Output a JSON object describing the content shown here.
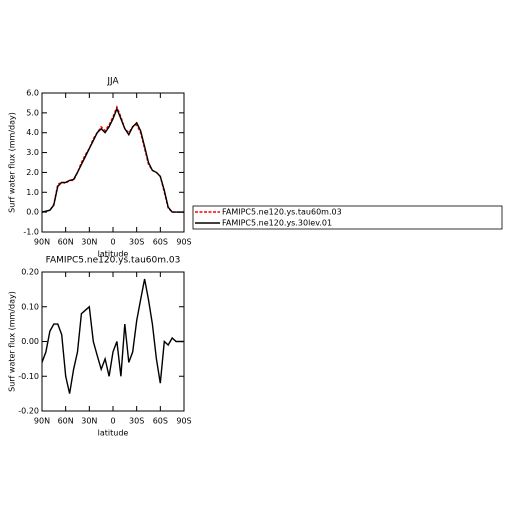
{
  "chart_data": [
    {
      "type": "line",
      "title": "JJA",
      "x_label": "latitude",
      "y_label": "Surf water flux (mm/day)",
      "x": [
        90,
        85,
        80,
        75,
        70,
        65,
        60,
        55,
        50,
        45,
        40,
        35,
        30,
        25,
        20,
        15,
        10,
        5,
        0,
        -5,
        -10,
        -15,
        -20,
        -25,
        -30,
        -35,
        -40,
        -45,
        -50,
        -55,
        -60,
        -65,
        -70,
        -75,
        -80,
        -85,
        -90
      ],
      "xlim": [
        90,
        -90
      ],
      "xticks": [
        {
          "value": 90,
          "label": "90N"
        },
        {
          "value": 60,
          "label": "60N"
        },
        {
          "value": 30,
          "label": "30N"
        },
        0,
        {
          "value": -30,
          "label": "30S"
        },
        {
          "value": -60,
          "label": "60S"
        },
        {
          "value": -90,
          "label": "90S"
        }
      ],
      "ylim": [
        -1,
        6
      ],
      "yticks": [
        {
          "value": -1,
          "label": "-1.0"
        },
        {
          "value": 0,
          "label": "0.0"
        },
        {
          "value": 1,
          "label": "1.0"
        },
        {
          "value": 2,
          "label": "2.0"
        },
        {
          "value": 3,
          "label": "3.0"
        },
        {
          "value": 4,
          "label": "4.0"
        },
        {
          "value": 5,
          "label": "5.0"
        },
        {
          "value": 6,
          "label": "6.0"
        }
      ],
      "series": [
        {
          "name": "FAMIPC5.ne120.ys.tau60m.03",
          "color": "#ff0000",
          "dashed": true,
          "values": [
            0.0,
            0.05,
            0.1,
            0.4,
            1.4,
            1.5,
            1.45,
            1.6,
            1.6,
            2.0,
            2.5,
            2.9,
            3.2,
            3.7,
            4.0,
            4.3,
            4.1,
            4.4,
            4.8,
            5.3,
            4.8,
            4.2,
            4.0,
            4.3,
            4.4,
            4.0,
            3.2,
            2.4,
            2.1,
            2.0,
            1.8,
            1.0,
            0.2,
            0.0,
            0.0,
            0.0,
            0.0
          ]
        },
        {
          "name": "FAMIPC5.ne120.ys.30lev.01",
          "color": "#000000",
          "dashed": false,
          "values": [
            0.0,
            0.05,
            0.1,
            0.35,
            1.3,
            1.5,
            1.5,
            1.6,
            1.65,
            2.0,
            2.4,
            2.8,
            3.2,
            3.6,
            4.0,
            4.2,
            4.0,
            4.3,
            4.7,
            5.2,
            4.7,
            4.2,
            3.9,
            4.3,
            4.5,
            4.1,
            3.3,
            2.5,
            2.1,
            2.0,
            1.8,
            1.1,
            0.25,
            0.0,
            0.0,
            0.0,
            0.0
          ]
        }
      ]
    },
    {
      "type": "line",
      "title": "FAMIPC5.ne120.ys.tau60m.03",
      "x_label": "latitude",
      "y_label": "Surf water flux (mm/day)",
      "x": [
        90,
        85,
        80,
        75,
        70,
        65,
        60,
        55,
        50,
        45,
        40,
        35,
        30,
        25,
        20,
        15,
        10,
        5,
        0,
        -5,
        -10,
        -15,
        -20,
        -25,
        -30,
        -35,
        -40,
        -45,
        -50,
        -55,
        -60,
        -65,
        -70,
        -75,
        -80,
        -85,
        -90
      ],
      "xlim": [
        90,
        -90
      ],
      "xticks": [
        {
          "value": 90,
          "label": "90N"
        },
        {
          "value": 60,
          "label": "60N"
        },
        {
          "value": 30,
          "label": "30N"
        },
        0,
        {
          "value": -30,
          "label": "30S"
        },
        {
          "value": -60,
          "label": "60S"
        },
        {
          "value": -90,
          "label": "90S"
        }
      ],
      "ylim": [
        -0.2,
        0.2
      ],
      "yticks": [
        {
          "value": -0.2,
          "label": "-0.20"
        },
        {
          "value": -0.1,
          "label": "-0.10"
        },
        {
          "value": 0,
          "label": "0.00"
        },
        {
          "value": 0.1,
          "label": "0.10"
        },
        {
          "value": 0.2,
          "label": "0.20"
        }
      ],
      "series": [
        {
          "name": "FAMIPC5.ne120.ys.tau60m.03",
          "color": "#000000",
          "dashed": false,
          "values": [
            -0.06,
            -0.03,
            0.03,
            0.05,
            0.05,
            0.02,
            -0.1,
            -0.15,
            -0.08,
            -0.03,
            0.08,
            0.09,
            0.1,
            0.0,
            -0.04,
            -0.08,
            -0.05,
            -0.1,
            -0.03,
            0.0,
            -0.1,
            0.05,
            -0.06,
            -0.03,
            0.06,
            0.12,
            0.18,
            0.12,
            0.05,
            -0.05,
            -0.12,
            0.0,
            -0.01,
            0.01,
            0.0,
            0.0,
            0.0
          ]
        }
      ]
    }
  ]
}
